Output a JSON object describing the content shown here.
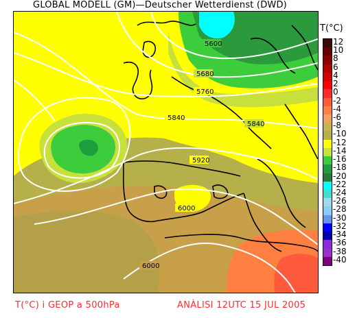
{
  "header": {
    "title": "GLOBAL MODELL (GM)—Deutscher Wetterdienst (DWD)"
  },
  "legend": {
    "title": "T(°C)",
    "items": [
      {
        "label": "12",
        "color": "#3a0a0a"
      },
      {
        "label": "10",
        "color": "#660000"
      },
      {
        "label": "8",
        "color": "#8b0000"
      },
      {
        "label": "6",
        "color": "#b30000"
      },
      {
        "label": "4",
        "color": "#d40000"
      },
      {
        "label": "2",
        "color": "#ff0000"
      },
      {
        "label": "0",
        "color": "#ff2a2a"
      },
      {
        "label": "-2",
        "color": "#ff5a3c"
      },
      {
        "label": "-4",
        "color": "#ff8040"
      },
      {
        "label": "-6",
        "color": "#f0a060"
      },
      {
        "label": "-8",
        "color": "#c8b44a"
      },
      {
        "label": "-10",
        "color": "#b5b04a"
      },
      {
        "label": "-12",
        "color": "#ffff00"
      },
      {
        "label": "-14",
        "color": "#c8e03c"
      },
      {
        "label": "-16",
        "color": "#3ccc3c"
      },
      {
        "label": "-18",
        "color": "#1e9e3c"
      },
      {
        "label": "-20",
        "color": "#2a7a3c"
      },
      {
        "label": "-22",
        "color": "#00ffff"
      },
      {
        "label": "-24",
        "color": "#40e0d0"
      },
      {
        "label": "-26",
        "color": "#a0d8f0"
      },
      {
        "label": "-28",
        "color": "#87cefa"
      },
      {
        "label": "-30",
        "color": "#6495ed"
      },
      {
        "label": "-32",
        "color": "#0000ff"
      },
      {
        "label": "-34",
        "color": "#0000b0"
      },
      {
        "label": "-36",
        "color": "#8a2be2"
      },
      {
        "label": "-38",
        "color": "#9932cc"
      },
      {
        "label": "-40",
        "color": "#800080"
      }
    ]
  },
  "contours": {
    "labels": [
      "5600",
      "5680",
      "5760",
      "5840",
      "5840",
      "5920",
      "6000",
      "6000"
    ]
  },
  "footer": {
    "left": "T(°C) i GEOP a 500hPa",
    "right": "ANÀLISI 12UTC 15 JUL 2005"
  }
}
